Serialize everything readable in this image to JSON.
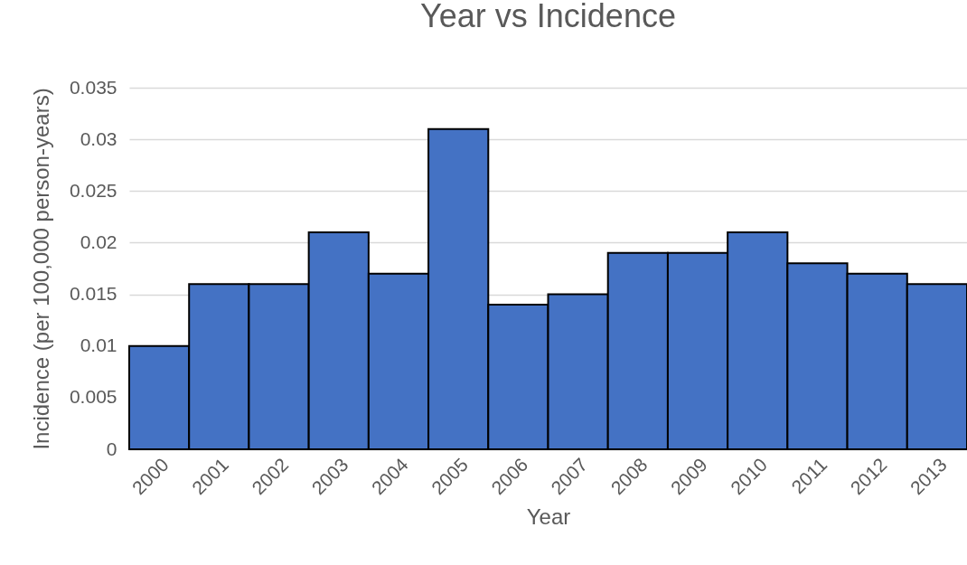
{
  "chart_data": {
    "type": "bar",
    "title": "Year vs Incidence",
    "xlabel": "Year",
    "ylabel": "Incidence (per 100,000 person-years)",
    "categories": [
      "2000",
      "2001",
      "2002",
      "2003",
      "2004",
      "2005",
      "2006",
      "2007",
      "2008",
      "2009",
      "2010",
      "2011",
      "2012",
      "2013"
    ],
    "values": [
      0.01,
      0.016,
      0.016,
      0.021,
      0.017,
      0.031,
      0.014,
      0.015,
      0.019,
      0.019,
      0.021,
      0.018,
      0.017,
      0.016
    ],
    "color": "#4472c4",
    "ylim": [
      0,
      0.035
    ],
    "yticks": [
      0,
      0.005,
      0.01,
      0.015,
      0.02,
      0.025,
      0.03,
      0.035
    ],
    "grid": "y"
  }
}
